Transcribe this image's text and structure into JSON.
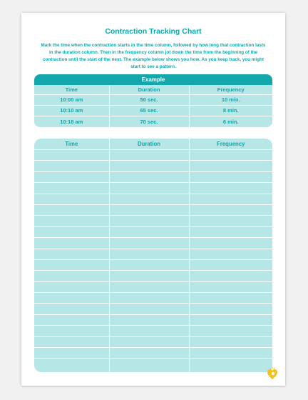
{
  "title": "Contraction Tracking Chart",
  "intro": "Mark the time when the contraction starts in the time column, followed by how long that contraction lasts in the duration column. Then in the frequency column jot down the time from the beginning of the contraction until the start of the next. The example below shows you how. As you keep track, you might start to see a pattern.",
  "example": {
    "title": "Example",
    "headers": [
      "Time",
      "Duration",
      "Frequency"
    ],
    "rows": [
      [
        "10:00 am",
        "50 sec.",
        "10 min."
      ],
      [
        "10:10 am",
        "65 sec.",
        "8 min."
      ],
      [
        "10:18 am",
        "70 sec.",
        "6 min."
      ]
    ]
  },
  "tracker": {
    "headers": [
      "Time",
      "Duration",
      "Frequency"
    ],
    "blank_rows": 20
  },
  "colors": {
    "accent": "#13a6aa",
    "cell": "#b7e6e7",
    "logo": "#f2c21b"
  },
  "logo_icon": "pampers-heart-logo-icon"
}
